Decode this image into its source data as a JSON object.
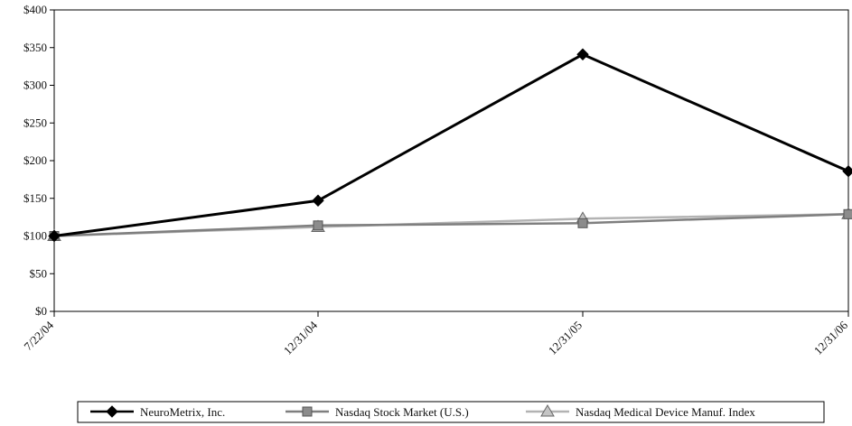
{
  "chart_data": {
    "type": "line",
    "title": "",
    "xlabel": "",
    "ylabel": "",
    "categories": [
      "7/22/04",
      "12/31/04",
      "12/31/05",
      "12/31/06"
    ],
    "ylim": [
      0,
      400
    ],
    "yticks": [
      0,
      50,
      100,
      150,
      200,
      250,
      300,
      350,
      400
    ],
    "ytick_labels": [
      "$0",
      "$50",
      "$100",
      "$150",
      "$200",
      "$250",
      "$300",
      "$350",
      "$400"
    ],
    "grid": false,
    "legend_position": "bottom",
    "series": [
      {
        "name": "NeuroMetrix, Inc.",
        "values": [
          100,
          147,
          341,
          186
        ],
        "color": "#000000",
        "marker": "diamond"
      },
      {
        "name": "Nasdaq Stock Market (U.S.)",
        "values": [
          100,
          114,
          117,
          129
        ],
        "color": "#7f7f7f",
        "marker": "square"
      },
      {
        "name": "Nasdaq Medical Device Manuf. Index",
        "values": [
          100,
          112,
          123,
          129
        ],
        "color": "#b3b3b3",
        "marker": "triangle"
      }
    ]
  }
}
